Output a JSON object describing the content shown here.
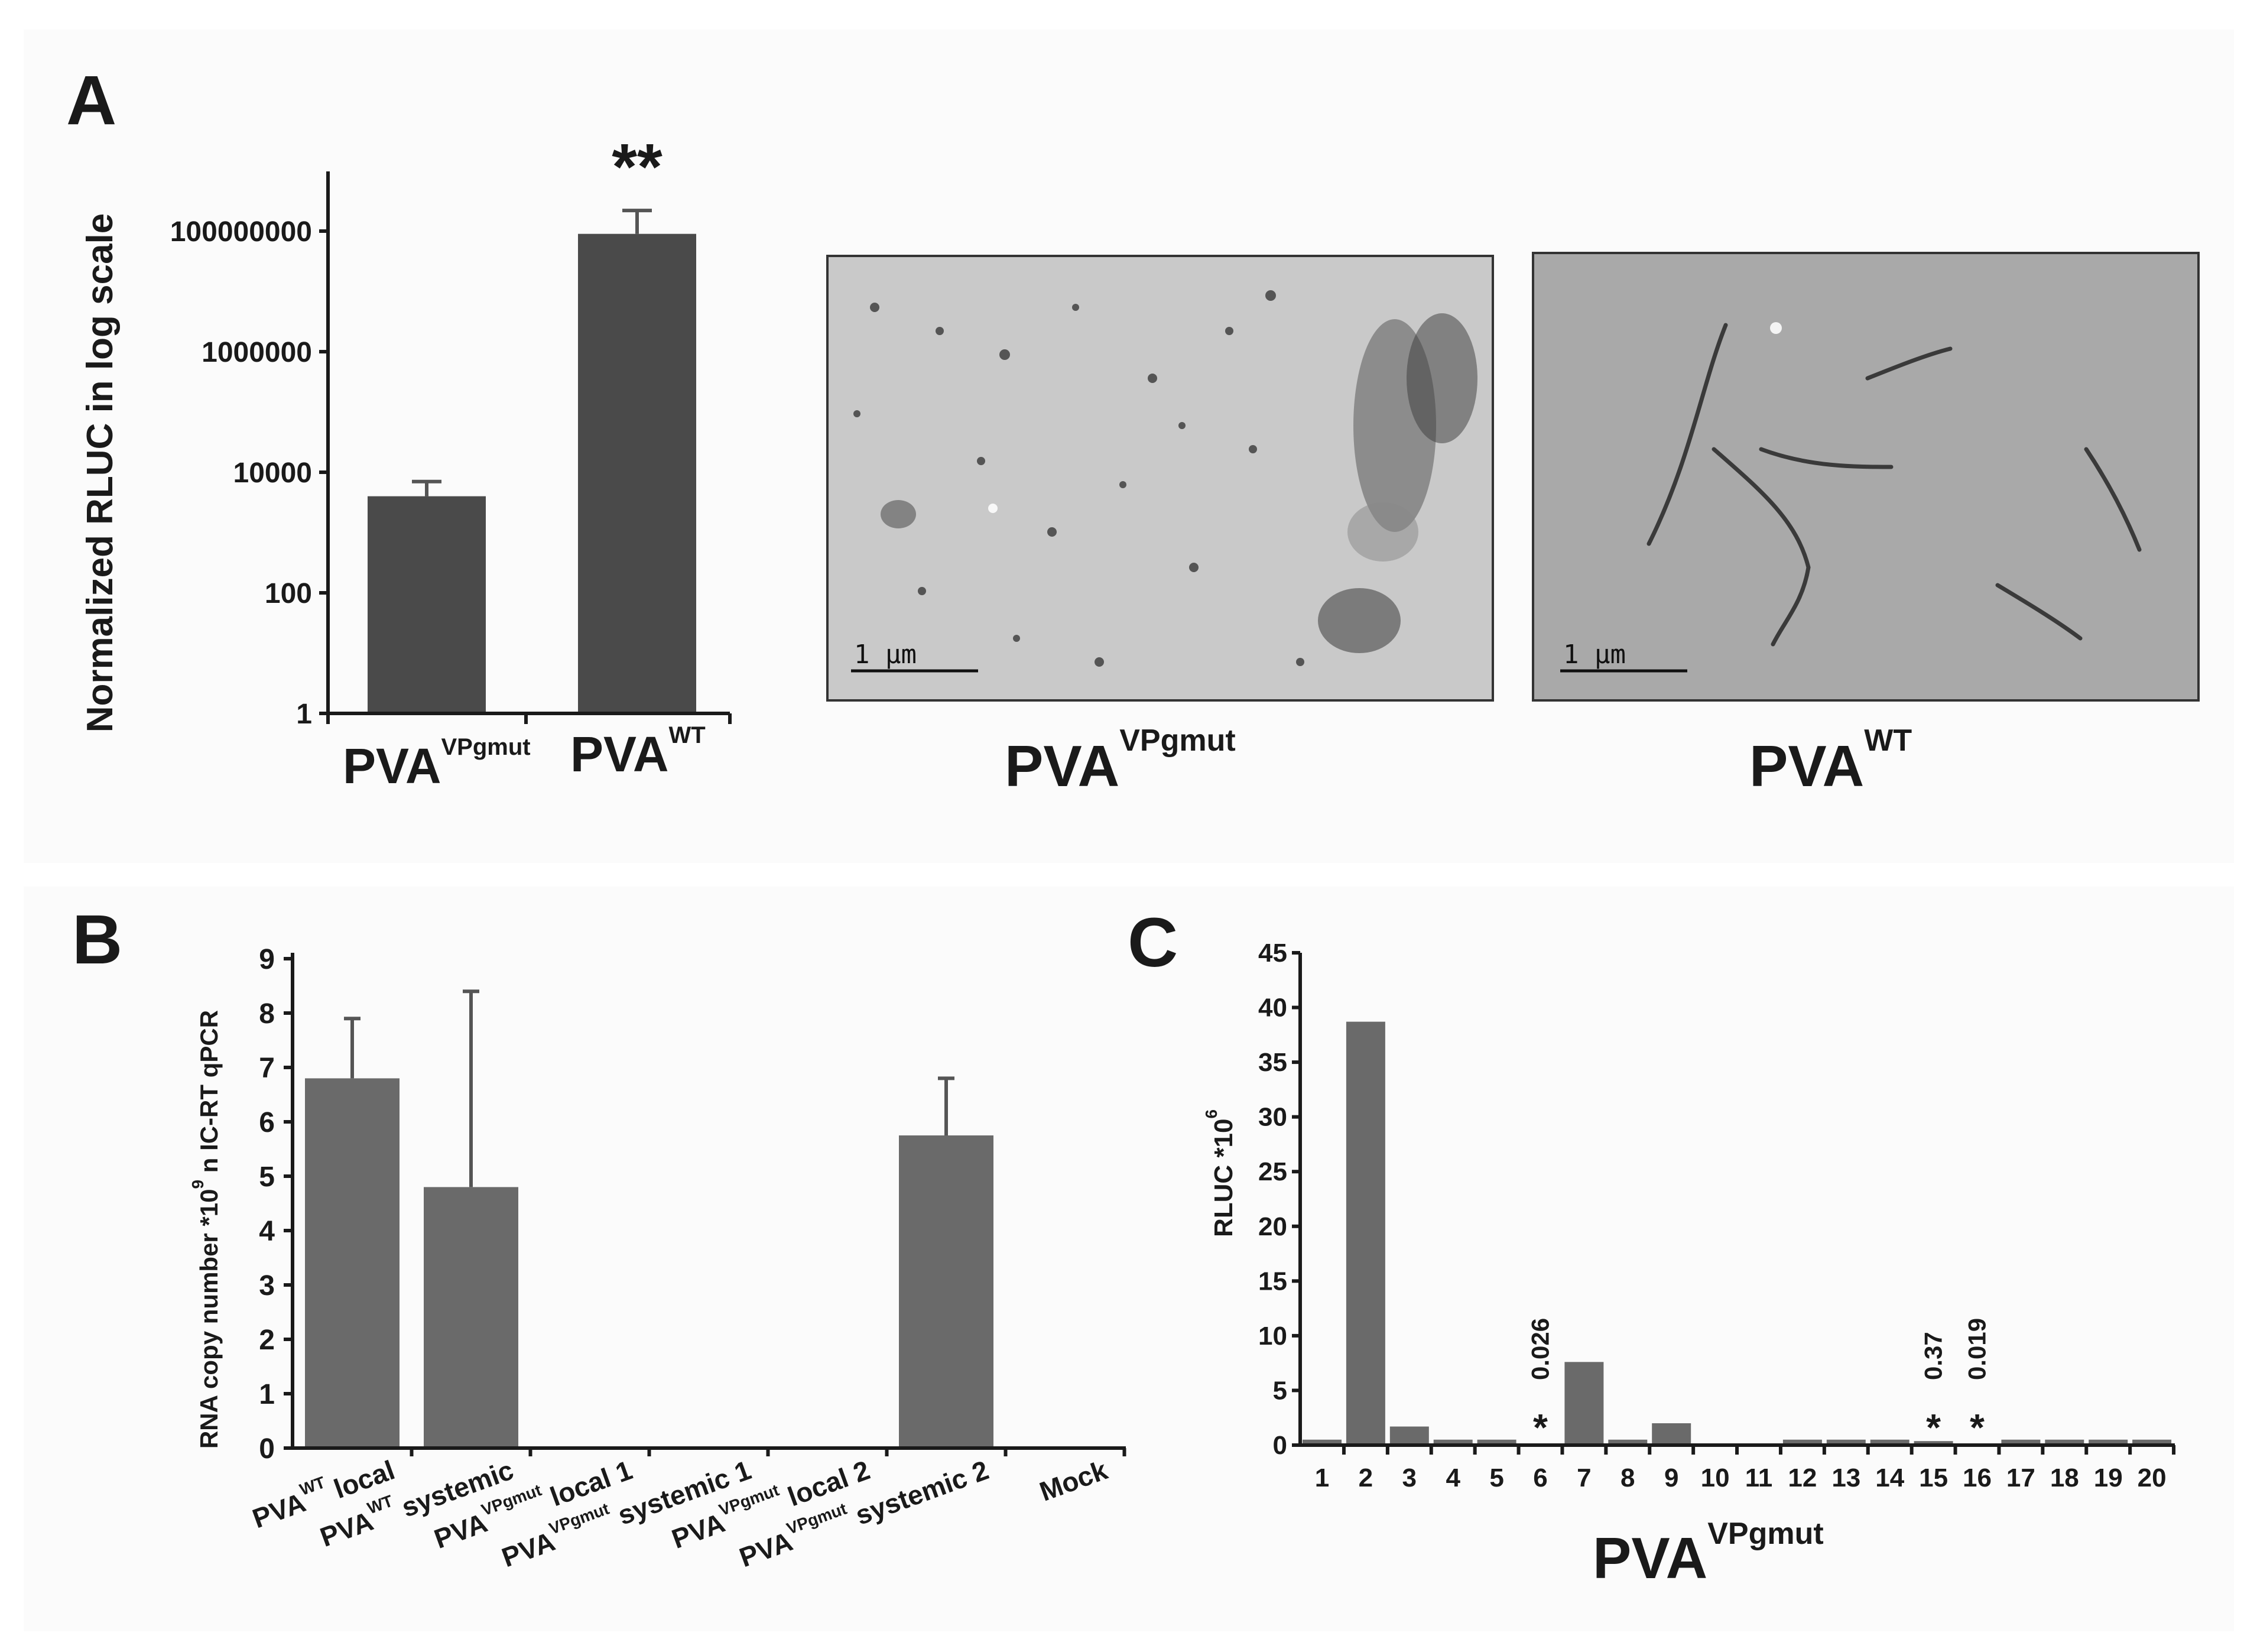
{
  "colors": {
    "bar_dark": "#4a4a4a",
    "bar_mid": "#6a6a6a",
    "micrograph_left_bg": "#c9c9c9",
    "micrograph_right_bg": "#a9a9a9"
  },
  "panels": {
    "a_letter": "A",
    "b_letter": "B",
    "c_letter": "C"
  },
  "chart_data": [
    {
      "id": "A",
      "type": "bar",
      "yscale": "log",
      "ylabel": "Normalized RLUC  in log scale",
      "ylim": [
        1,
        100000000
      ],
      "yticks": [
        "1",
        "100",
        "10000",
        "1000000",
        "100000000"
      ],
      "categories": [
        {
          "base": "PVA",
          "sup": "VPgmut"
        },
        {
          "base": "PVA",
          "sup": "WT"
        }
      ],
      "values": [
        4000,
        90000000
      ],
      "errors": [
        3000,
        130000000
      ],
      "annotation": "**"
    },
    {
      "id": "B",
      "type": "bar",
      "ylabel": "RNA copy number *10",
      "ylabel_sup": "9",
      "ylabel_tail": " n IC-RT qPCR",
      "ylim": [
        0,
        9
      ],
      "yticks": [
        "0",
        "1",
        "2",
        "3",
        "4",
        "5",
        "6",
        "7",
        "8",
        "9"
      ],
      "categories": [
        {
          "prefix": "PVA",
          "sup": "WT",
          "label": "local"
        },
        {
          "prefix": "PVA",
          "sup": "WT",
          "label": "systemic"
        },
        {
          "prefix": "PVA",
          "sup": "VPgmut",
          "label": "local 1"
        },
        {
          "prefix": "PVA",
          "sup": "VPgmut",
          "label": "systemic 1"
        },
        {
          "prefix": "PVA",
          "sup": "VPgmut",
          "label": "local 2"
        },
        {
          "prefix": "PVA",
          "sup": "VPgmut",
          "label": "systemic 2"
        },
        {
          "prefix": "",
          "sup": "",
          "label": "Mock"
        }
      ],
      "values": [
        6.8,
        4.8,
        0.02,
        0.02,
        0.02,
        5.75,
        0.02
      ],
      "errors": [
        1.1,
        3.6,
        0,
        0,
        0,
        1.05,
        0
      ]
    },
    {
      "id": "C",
      "type": "bar",
      "ylabel": "RLUC *10",
      "ylabel_sup": "6",
      "ylim": [
        0,
        45
      ],
      "yticks": [
        "0",
        "5",
        "10",
        "15",
        "20",
        "25",
        "30",
        "35",
        "40",
        "45"
      ],
      "xlabel": "PVA",
      "xlabel_sup": "VPgmut",
      "categories": [
        "1",
        "2",
        "3",
        "4",
        "5",
        "6",
        "7",
        "8",
        "9",
        "10",
        "11",
        "12",
        "13",
        "14",
        "15",
        "16",
        "17",
        "18",
        "19",
        "20"
      ],
      "values": [
        0.5,
        38.7,
        1.7,
        0.5,
        0.5,
        0.026,
        7.6,
        0.5,
        2.0,
        0,
        0,
        0.5,
        0.5,
        0.5,
        0.37,
        0.019,
        0.5,
        0.5,
        0.5,
        0.5
      ],
      "annotations": [
        {
          "category": "6",
          "value_text": "0.026",
          "mark": "*"
        },
        {
          "category": "15",
          "value_text": "0.37",
          "mark": "*"
        },
        {
          "category": "16",
          "value_text": "0.019",
          "mark": "*"
        }
      ]
    }
  ],
  "micrographs": [
    {
      "scale_label": "1 μm",
      "caption": "PVA",
      "caption_sup": "VPgmut"
    },
    {
      "scale_label": "1 μm",
      "caption": "PVA",
      "caption_sup": "WT"
    }
  ]
}
